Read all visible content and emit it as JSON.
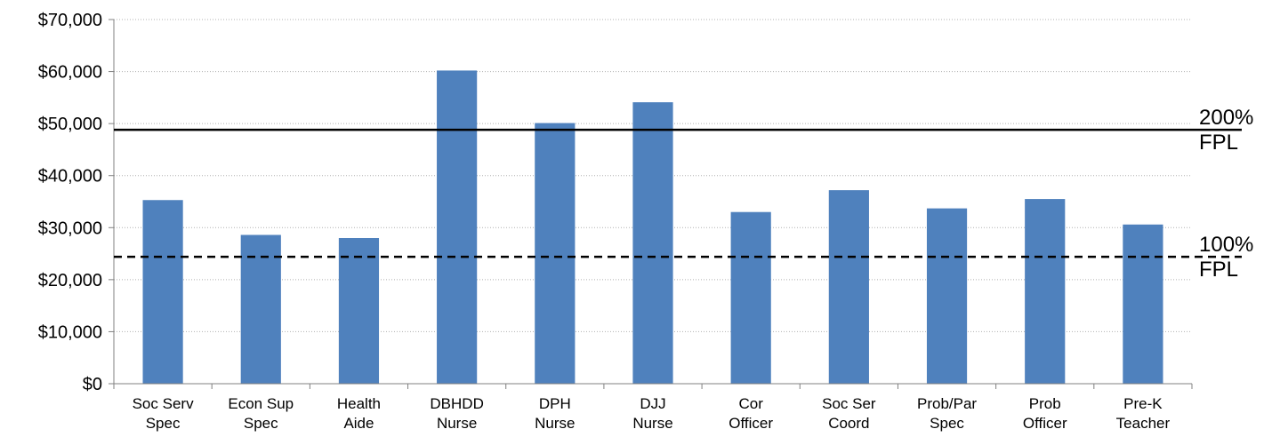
{
  "chart_data": {
    "type": "bar",
    "categories": [
      [
        "Soc Serv",
        "Spec"
      ],
      [
        "Econ Sup",
        "Spec"
      ],
      [
        "Health",
        "Aide"
      ],
      [
        "DBHDD",
        "Nurse"
      ],
      [
        "DPH",
        "Nurse"
      ],
      [
        "DJJ",
        "Nurse"
      ],
      [
        "Cor",
        "Officer"
      ],
      [
        "Soc Ser",
        "Coord"
      ],
      [
        "Prob/Par",
        "Spec"
      ],
      [
        "Prob",
        "Officer"
      ],
      [
        "Pre-K",
        "Teacher"
      ]
    ],
    "values": [
      35300,
      28600,
      28000,
      60200,
      50100,
      54100,
      33000,
      37200,
      33700,
      35500,
      30600
    ],
    "ylim": [
      0,
      70000
    ],
    "yticks": [
      0,
      10000,
      20000,
      30000,
      40000,
      50000,
      60000,
      70000
    ],
    "ytick_labels": [
      "$0",
      "$10,000",
      "$20,000",
      "$30,000",
      "$40,000",
      "$50,000",
      "$60,000",
      "$70,000"
    ],
    "grid": true,
    "bar_color": "#4f81bd",
    "reference_lines": [
      {
        "value": 48800,
        "label": [
          "200%",
          "FPL"
        ],
        "style": "solid"
      },
      {
        "value": 24400,
        "label": [
          "100%",
          "FPL"
        ],
        "style": "dashed"
      }
    ]
  }
}
